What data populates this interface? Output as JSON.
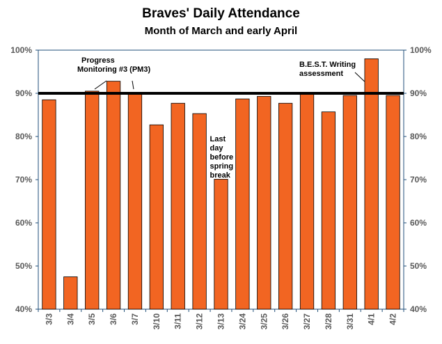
{
  "chart_data": {
    "type": "bar",
    "title": "Braves' Daily Attendance",
    "subtitle": "Month of March and early April",
    "categories": [
      "3/3",
      "3/4",
      "3/5",
      "3/6",
      "3/7",
      "3/10",
      "3/11",
      "3/12",
      "3/13",
      "3/24",
      "3/25",
      "3/26",
      "3/27",
      "3/28",
      "3/31",
      "4/1",
      "4/2"
    ],
    "values": [
      88.5,
      47.5,
      90.5,
      92.8,
      90.0,
      82.7,
      87.7,
      85.3,
      70.1,
      88.7,
      89.3,
      87.7,
      90.0,
      85.7,
      89.5,
      98.0,
      89.5
    ],
    "ylim": [
      40,
      100
    ],
    "yticks": [
      "40%",
      "50%",
      "60%",
      "70%",
      "80%",
      "90%",
      "100%"
    ],
    "ytick_values": [
      40,
      50,
      60,
      70,
      80,
      90,
      100
    ],
    "target_line": 90,
    "bar_color": "#F26522",
    "bar_edge_color": "#000000",
    "axis_color": "#1F4E79",
    "grid": false,
    "annotations": [
      {
        "lines": [
          "Progress",
          "Monitoring #3 (PM3)"
        ],
        "category": "3/6"
      },
      {
        "lines": [
          "Last",
          "day",
          "before",
          "spring",
          "break"
        ],
        "category": "3/13"
      },
      {
        "lines": [
          "B.E.S.T. Writing",
          "assessment"
        ],
        "category": "4/1"
      }
    ]
  }
}
